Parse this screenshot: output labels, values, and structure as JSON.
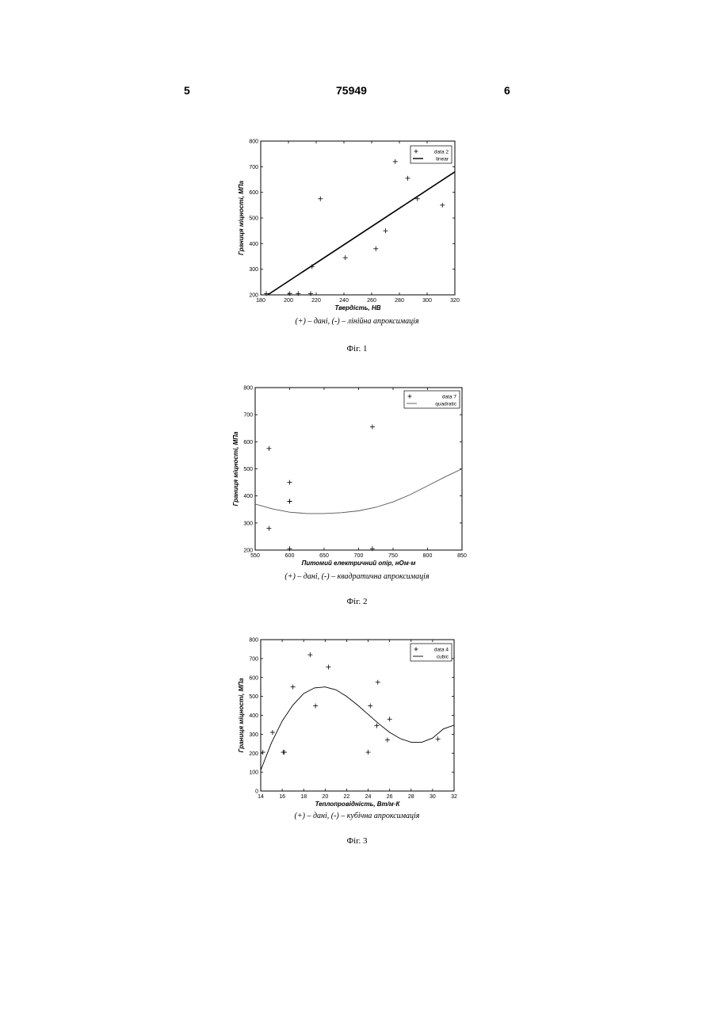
{
  "page": {
    "left_number": "5",
    "center_number": "75949",
    "right_number": "6"
  },
  "figures": [
    {
      "caption": "(+) – дані, (-) – лінійна апроксимація",
      "label": "Фіг. 1"
    },
    {
      "caption": "(+) – дані, (-) – квадратична апроксимація",
      "label": "Фіг. 2"
    },
    {
      "caption": "(+) – дані, (-) – кубічна апроксимація",
      "label": "Фіг. 3"
    }
  ],
  "chart_data": [
    {
      "type": "scatter",
      "xlabel": "Твердість, НВ",
      "ylabel": "Границя міцності, МПа",
      "xlim": [
        180,
        320
      ],
      "ylim": [
        200,
        800
      ],
      "xticks": [
        180,
        200,
        220,
        240,
        260,
        280,
        300,
        320
      ],
      "yticks": [
        200,
        300,
        400,
        500,
        600,
        700,
        800
      ],
      "legend_position": "top-right",
      "series": [
        {
          "name": "data 2",
          "kind": "points",
          "x": [
            184,
            201,
            207,
            216,
            217,
            223,
            241,
            263,
            270,
            277,
            286,
            293,
            311
          ],
          "y": [
            205,
            205,
            205,
            205,
            310,
            575,
            345,
            380,
            450,
            720,
            655,
            575,
            550
          ]
        },
        {
          "name": "linear",
          "kind": "line",
          "color": "#000000",
          "x": [
            185,
            320
          ],
          "y": [
            200,
            680
          ]
        }
      ]
    },
    {
      "type": "scatter",
      "xlabel": "Питомий електричний опір, нОм·м",
      "ylabel": "Границя міцності, МПа",
      "xlim": [
        550,
        850
      ],
      "ylim": [
        200,
        800
      ],
      "xticks": [
        550,
        600,
        650,
        700,
        750,
        800,
        850
      ],
      "yticks": [
        200,
        300,
        400,
        500,
        600,
        700,
        800
      ],
      "legend_position": "top-right",
      "series": [
        {
          "name": "data 7",
          "kind": "points",
          "x": [
            570,
            570,
            600,
            600,
            600,
            600,
            720,
            720
          ],
          "y": [
            575,
            280,
            450,
            380,
            380,
            205,
            655,
            205
          ]
        },
        {
          "name": "quadratic",
          "kind": "line",
          "color": "#555555",
          "x": [
            550,
            575,
            600,
            625,
            650,
            675,
            700,
            725,
            750,
            775,
            800,
            825,
            850
          ],
          "y": [
            370,
            352,
            340,
            335,
            335,
            338,
            345,
            358,
            378,
            405,
            437,
            470,
            500
          ]
        }
      ]
    },
    {
      "type": "scatter",
      "xlabel": "Теплопровідність, Вт/м·К",
      "ylabel": "Границя міцності, МПа",
      "xlim": [
        14,
        32
      ],
      "ylim": [
        0,
        800
      ],
      "xticks": [
        14,
        16,
        18,
        20,
        22,
        24,
        26,
        28,
        30,
        32
      ],
      "yticks": [
        0,
        100,
        200,
        300,
        400,
        500,
        600,
        700,
        800
      ],
      "legend_position": "top-right",
      "series": [
        {
          "name": "data 4",
          "kind": "points",
          "x": [
            14.2,
            15.1,
            16.1,
            16.2,
            17.0,
            18.6,
            19.1,
            20.3,
            24.0,
            24.2,
            24.8,
            24.9,
            25.8,
            26.0,
            30.5
          ],
          "y": [
            205,
            310,
            205,
            205,
            550,
            720,
            450,
            655,
            205,
            450,
            345,
            575,
            270,
            380,
            275
          ]
        },
        {
          "name": "cubic",
          "kind": "line",
          "color": "#000000",
          "x": [
            14,
            15,
            16,
            17,
            18,
            19,
            20,
            21,
            22,
            23,
            24,
            25,
            26,
            27,
            28,
            29,
            30,
            31,
            32
          ],
          "y": [
            110,
            255,
            370,
            455,
            515,
            545,
            550,
            535,
            500,
            455,
            405,
            355,
            310,
            277,
            258,
            258,
            280,
            328,
            348
          ]
        }
      ]
    }
  ]
}
